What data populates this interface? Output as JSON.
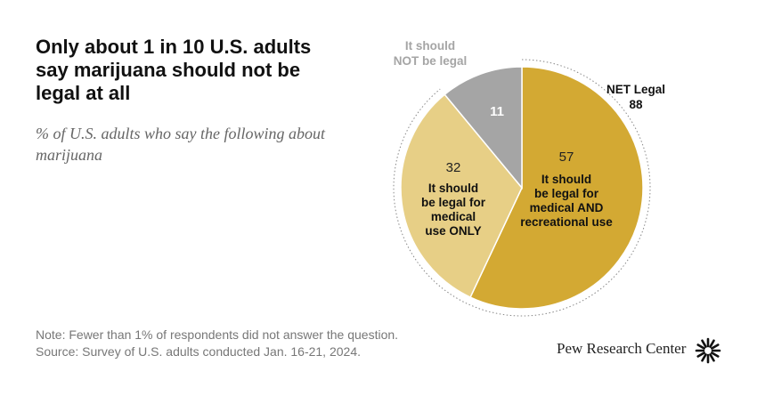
{
  "chart_data": {
    "type": "pie",
    "title": "Only about 1 in 10 U.S. adults say marijuana should not be legal at all",
    "subtitle": "% of U.S. adults who say the following about marijuana",
    "slices": [
      {
        "label": "It should be legal for medical AND recreational use",
        "value": 57,
        "color": "#d3a933"
      },
      {
        "label": "It should be legal for medical use ONLY",
        "value": 32,
        "color": "#e7cf86"
      },
      {
        "label": "It should NOT be legal",
        "value": 11,
        "color": "#a5a5a5"
      }
    ],
    "annotations": [
      {
        "label": "NET Legal",
        "value": 88
      }
    ]
  },
  "labels": {
    "slice0_lines": [
      "It should",
      "be legal for",
      "medical AND",
      "recreational use"
    ],
    "slice1_lines": [
      "It should",
      "be legal for",
      "medical",
      "use ONLY"
    ],
    "slice2_lines": [
      "It should",
      "NOT be legal"
    ],
    "net_label": "NET Legal",
    "net_value": "88"
  },
  "notes": {
    "note": "Note: Fewer than 1% of respondents did not answer the question.",
    "source": "Source: Survey of U.S. adults conducted Jan. 16-21, 2024."
  },
  "brand": "Pew Research Center"
}
